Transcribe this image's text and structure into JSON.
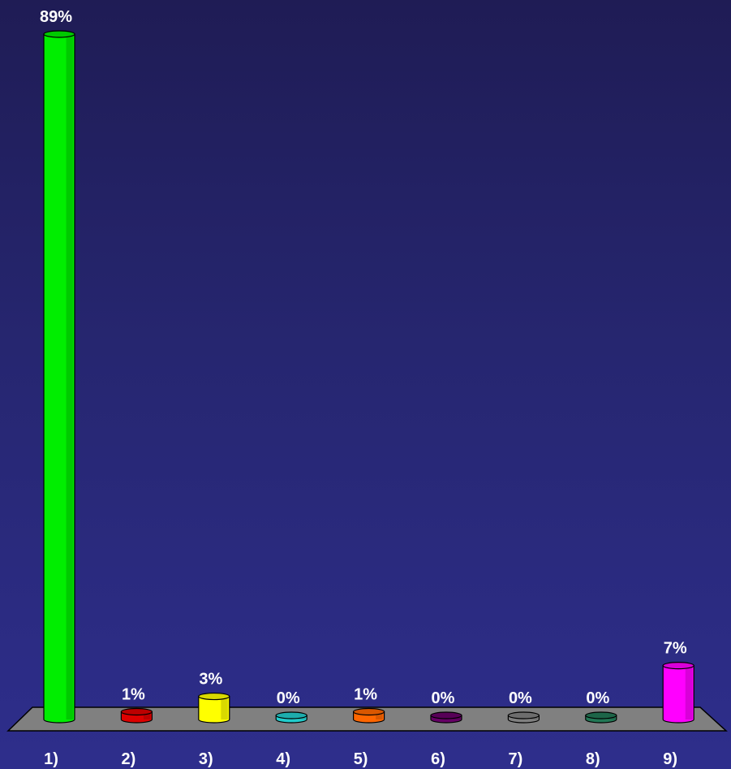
{
  "chart_data": {
    "type": "bar",
    "style": "3d-cylinder",
    "categories": [
      "1)",
      "2)",
      "3)",
      "4)",
      "5)",
      "6)",
      "7)",
      "8)",
      "9)"
    ],
    "values": [
      89,
      1,
      3,
      0,
      1,
      0,
      0,
      0,
      7
    ],
    "value_labels": [
      "89%",
      "1%",
      "3%",
      "0%",
      "1%",
      "0%",
      "0%",
      "0%",
      "7%"
    ],
    "ylim": [
      0,
      89
    ],
    "grid": false,
    "legend": "none",
    "colors": [
      "#00ee00",
      "#dd0000",
      "#ffff00",
      "#22cccc",
      "#ff6600",
      "#660066",
      "#808080",
      "#227755",
      "#ff00ff"
    ],
    "floor_color": "#808080"
  }
}
